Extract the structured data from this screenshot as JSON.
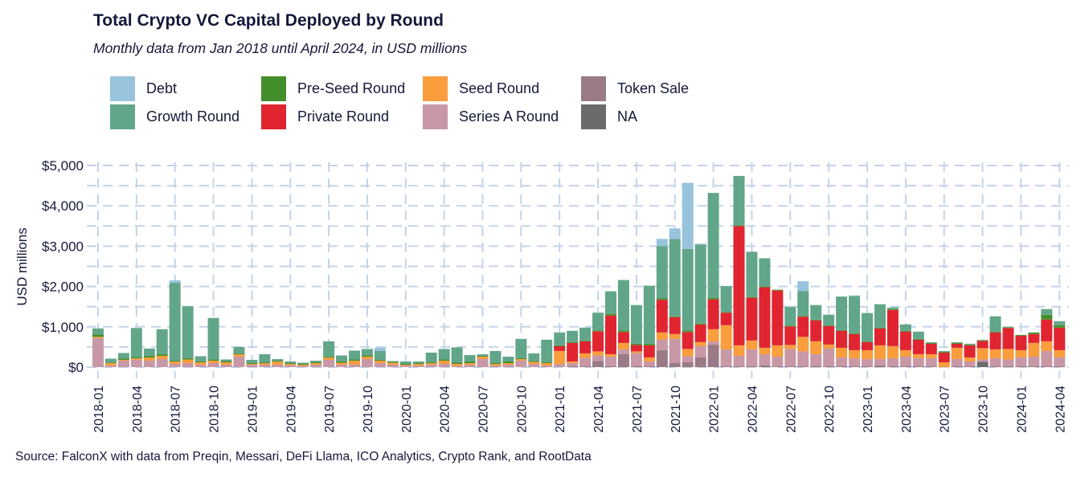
{
  "chart_data": {
    "type": "bar",
    "stacked": true,
    "title": "Total Crypto VC Capital Deployed by Round",
    "subtitle": "Monthly data from Jan 2018 until April 2024, in USD millions",
    "xlabel": "",
    "ylabel": "USD millions",
    "ylim": [
      0,
      5000
    ],
    "yticks": [
      0,
      1000,
      2000,
      3000,
      4000,
      5000
    ],
    "ytick_labels": [
      "$0",
      "$1,000",
      "$2,000",
      "$3,000",
      "$4,000",
      "$5,000"
    ],
    "xtick_labels": [
      "2018-01",
      "2018-04",
      "2018-07",
      "2018-10",
      "2019-01",
      "2019-04",
      "2019-07",
      "2019-10",
      "2020-01",
      "2020-04",
      "2020-07",
      "2020-10",
      "2021-01",
      "2021-04",
      "2021-07",
      "2021-10",
      "2022-01",
      "2022-04",
      "2022-07",
      "2022-10",
      "2023-01",
      "2023-04",
      "2023-07",
      "2023-10",
      "2024-01",
      "2024-04"
    ],
    "grid": true,
    "legend_position": "top-left",
    "source": "Source: FalconX with data from Preqin, Messari, DeFi Llama, ICO Analytics, Crypto Rank, and RootData",
    "legend": [
      {
        "name": "Debt",
        "color": "#97c3dd"
      },
      {
        "name": "Growth Round",
        "color": "#62a68a"
      },
      {
        "name": "Pre-Seed Round",
        "color": "#438f2c"
      },
      {
        "name": "Private Round",
        "color": "#e02531"
      },
      {
        "name": "Seed Round",
        "color": "#f99d3d"
      },
      {
        "name": "Series A Round",
        "color": "#c898a6"
      },
      {
        "name": "Token Sale",
        "color": "#9a7b85"
      },
      {
        "name": "NA",
        "color": "#6b6b6b"
      }
    ],
    "stack_order": [
      "NA",
      "Token Sale",
      "Series A Round",
      "Seed Round",
      "Private Round",
      "Pre-Seed Round",
      "Growth Round",
      "Debt"
    ],
    "categories": [
      "2018-01",
      "2018-02",
      "2018-03",
      "2018-04",
      "2018-05",
      "2018-06",
      "2018-07",
      "2018-08",
      "2018-09",
      "2018-10",
      "2018-11",
      "2018-12",
      "2019-01",
      "2019-02",
      "2019-03",
      "2019-04",
      "2019-05",
      "2019-06",
      "2019-07",
      "2019-08",
      "2019-09",
      "2019-10",
      "2019-11",
      "2019-12",
      "2020-01",
      "2020-02",
      "2020-03",
      "2020-04",
      "2020-05",
      "2020-06",
      "2020-07",
      "2020-08",
      "2020-09",
      "2020-10",
      "2020-11",
      "2020-12",
      "2021-01",
      "2021-02",
      "2021-03",
      "2021-04",
      "2021-05",
      "2021-06",
      "2021-07",
      "2021-08",
      "2021-09",
      "2021-10",
      "2021-11",
      "2021-12",
      "2022-01",
      "2022-02",
      "2022-03",
      "2022-04",
      "2022-05",
      "2022-06",
      "2022-07",
      "2022-08",
      "2022-09",
      "2022-10",
      "2022-11",
      "2022-12",
      "2023-01",
      "2023-02",
      "2023-03",
      "2023-04",
      "2023-05",
      "2023-06",
      "2023-07",
      "2023-08",
      "2023-09",
      "2023-10",
      "2023-11",
      "2023-12",
      "2024-01",
      "2024-02",
      "2024-03",
      "2024-04"
    ],
    "series": [
      {
        "name": "NA",
        "values": [
          0,
          0,
          0,
          0,
          0,
          0,
          0,
          0,
          0,
          0,
          0,
          0,
          0,
          0,
          0,
          0,
          0,
          0,
          0,
          0,
          0,
          0,
          0,
          0,
          0,
          0,
          0,
          0,
          0,
          0,
          0,
          0,
          0,
          0,
          0,
          0,
          0,
          0,
          0,
          0,
          0,
          0,
          0,
          0,
          0,
          0,
          0,
          0,
          0,
          0,
          0,
          0,
          0,
          0,
          0,
          0,
          0,
          0,
          0,
          0,
          0,
          0,
          0,
          0,
          0,
          0,
          0,
          0,
          0,
          130,
          0,
          0,
          0,
          0,
          0,
          0
        ]
      },
      {
        "name": "Token Sale",
        "values": [
          0,
          0,
          0,
          0,
          0,
          0,
          0,
          0,
          0,
          0,
          0,
          0,
          0,
          0,
          0,
          0,
          0,
          0,
          0,
          0,
          0,
          0,
          0,
          0,
          0,
          0,
          0,
          0,
          0,
          0,
          0,
          0,
          0,
          0,
          0,
          0,
          0,
          20,
          20,
          150,
          20,
          320,
          20,
          20,
          420,
          100,
          120,
          240,
          560,
          20,
          20,
          20,
          40,
          20,
          20,
          20,
          20,
          20,
          20,
          20,
          20,
          40,
          20,
          20,
          20,
          20,
          0,
          20,
          20,
          0,
          20,
          20,
          20,
          20,
          20,
          20
        ]
      },
      {
        "name": "Series A Round",
        "values": [
          720,
          40,
          160,
          190,
          160,
          200,
          80,
          100,
          60,
          100,
          60,
          260,
          60,
          60,
          60,
          50,
          30,
          60,
          180,
          60,
          60,
          200,
          100,
          60,
          40,
          40,
          60,
          80,
          30,
          60,
          200,
          40,
          60,
          160,
          80,
          40,
          80,
          80,
          210,
          140,
          240,
          120,
          330,
          120,
          260,
          600,
          150,
          280,
          80,
          420,
          260,
          420,
          280,
          240,
          430,
          370,
          300,
          440,
          220,
          200,
          180,
          160,
          200,
          240,
          200,
          200,
          0,
          180,
          120,
          60,
          200,
          170,
          220,
          240,
          380,
          220
        ]
      },
      {
        "name": "Seed Round",
        "values": [
          30,
          60,
          20,
          30,
          80,
          80,
          60,
          90,
          60,
          60,
          60,
          60,
          20,
          40,
          80,
          30,
          30,
          40,
          60,
          50,
          100,
          60,
          60,
          50,
          20,
          40,
          40,
          80,
          50,
          40,
          60,
          40,
          40,
          40,
          50,
          60,
          320,
          40,
          110,
          100,
          60,
          160,
          40,
          100,
          180,
          120,
          180,
          100,
          300,
          600,
          260,
          220,
          160,
          280,
          100,
          360,
          320,
          100,
          240,
          200,
          220,
          340,
          300,
          160,
          100,
          100,
          120,
          280,
          100,
          280,
          220,
          260,
          180,
          340,
          240,
          180
        ]
      },
      {
        "name": "Private Round",
        "values": [
          0,
          0,
          0,
          0,
          0,
          0,
          0,
          0,
          0,
          0,
          0,
          0,
          0,
          0,
          0,
          0,
          0,
          0,
          0,
          0,
          0,
          0,
          0,
          0,
          0,
          0,
          0,
          0,
          0,
          0,
          0,
          0,
          0,
          0,
          0,
          0,
          120,
          460,
          300,
          500,
          960,
          270,
          160,
          300,
          810,
          420,
          420,
          440,
          740,
          310,
          2960,
          1060,
          1500,
          1360,
          460,
          500,
          520,
          460,
          420,
          400,
          200,
          420,
          900,
          460,
          360,
          260,
          240,
          100,
          300,
          180,
          420,
          520,
          360,
          220,
          540,
          560
        ]
      },
      {
        "name": "Pre-Seed Round",
        "values": [
          60,
          10,
          30,
          30,
          40,
          40,
          20,
          30,
          20,
          30,
          30,
          20,
          20,
          20,
          20,
          20,
          20,
          20,
          20,
          30,
          30,
          30,
          20,
          20,
          20,
          20,
          20,
          30,
          30,
          40,
          20,
          20,
          40,
          20,
          20,
          20,
          20,
          20,
          20,
          20,
          40,
          40,
          30,
          40,
          40,
          20,
          40,
          20,
          40,
          20,
          20,
          20,
          20,
          20,
          20,
          20,
          20,
          20,
          20,
          20,
          20,
          20,
          20,
          20,
          20,
          20,
          20,
          20,
          20,
          20,
          20,
          20,
          20,
          40,
          120,
          60
        ]
      },
      {
        "name": "Growth Round",
        "values": [
          150,
          100,
          140,
          720,
          180,
          620,
          1930,
          1290,
          130,
          1030,
          40,
          160,
          80,
          200,
          40,
          40,
          30,
          40,
          380,
          150,
          220,
          160,
          220,
          20,
          60,
          40,
          240,
          260,
          380,
          160,
          40,
          300,
          120,
          480,
          190,
          560,
          320,
          280,
          320,
          440,
          560,
          1250,
          960,
          1440,
          1290,
          1920,
          2020,
          1960,
          2600,
          640,
          1220,
          1120,
          700,
          0,
          460,
          620,
          360,
          260,
          830,
          920,
          700,
          580,
          40,
          160,
          180,
          20,
          20,
          20,
          20,
          0,
          380,
          0,
          0,
          0,
          140,
          100
        ]
      },
      {
        "name": "Debt",
        "values": [
          0,
          0,
          0,
          0,
          0,
          0,
          60,
          0,
          0,
          0,
          0,
          0,
          0,
          0,
          0,
          0,
          0,
          0,
          0,
          0,
          0,
          0,
          80,
          0,
          0,
          0,
          0,
          0,
          0,
          0,
          0,
          0,
          0,
          0,
          0,
          0,
          0,
          0,
          0,
          0,
          0,
          0,
          0,
          0,
          180,
          260,
          1640,
          20,
          0,
          0,
          0,
          0,
          0,
          0,
          20,
          240,
          0,
          0,
          0,
          20,
          0,
          0,
          0,
          0,
          0,
          0,
          0,
          0,
          0,
          0,
          0,
          0,
          0,
          0,
          0,
          0
        ]
      }
    ]
  }
}
